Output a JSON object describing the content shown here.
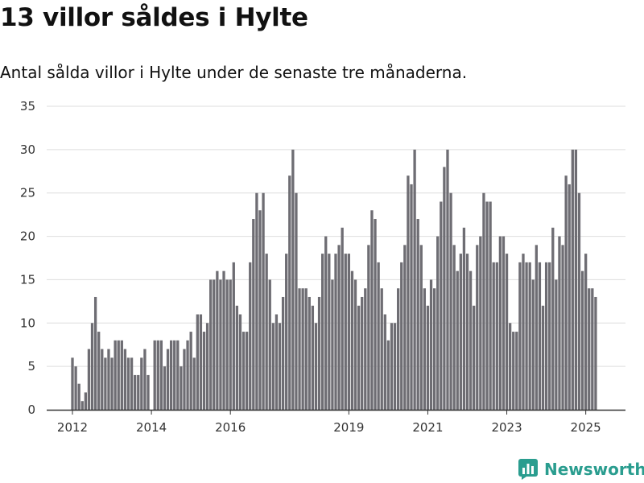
{
  "header": {
    "title": "13 villor såldes i Hylte",
    "subtitle": "Antal sålda villor i Hylte under de senaste tre månaderna."
  },
  "brand": {
    "name": "Newsworthy",
    "color": "#2a9d8f",
    "icon": "bar-chart-logo-icon"
  },
  "colors": {
    "bar": "#6e6d73",
    "highlight": "#2a9d8f",
    "grid": "#dddddd",
    "axis": "#333333"
  },
  "chart_data": {
    "type": "bar",
    "start": "2012-01",
    "frequency": "monthly",
    "values": [
      6,
      5,
      3,
      1,
      2,
      7,
      10,
      13,
      9,
      7,
      6,
      7,
      6,
      8,
      8,
      8,
      7,
      6,
      6,
      4,
      4,
      6,
      7,
      4,
      0,
      8,
      8,
      8,
      5,
      7,
      8,
      8,
      8,
      5,
      7,
      8,
      9,
      6,
      11,
      11,
      9,
      10,
      15,
      15,
      16,
      15,
      16,
      15,
      15,
      17,
      12,
      11,
      9,
      9,
      17,
      22,
      25,
      23,
      25,
      18,
      15,
      10,
      11,
      10,
      13,
      18,
      27,
      30,
      25,
      14,
      14,
      14,
      13,
      12,
      10,
      13,
      18,
      20,
      18,
      15,
      18,
      19,
      21,
      18,
      18,
      16,
      15,
      12,
      13,
      14,
      19,
      23,
      22,
      17,
      14,
      11,
      8,
      10,
      10,
      14,
      17,
      19,
      27,
      26,
      30,
      22,
      19,
      14,
      12,
      15,
      14,
      20,
      24,
      28,
      30,
      25,
      19,
      16,
      18,
      21,
      18,
      16,
      12,
      19,
      20,
      25,
      24,
      24,
      17,
      17,
      20,
      20,
      18,
      10,
      9,
      9,
      17,
      18,
      17,
      17,
      15,
      19,
      17,
      12,
      17,
      17,
      21,
      15,
      20,
      19,
      27,
      26,
      30,
      30,
      25,
      16,
      18,
      14,
      14,
      13
    ],
    "highlight_index": 160,
    "highlight_label": "13",
    "yticks": [
      0,
      5,
      10,
      15,
      20,
      25,
      30,
      35
    ],
    "ylim": [
      0,
      35
    ],
    "xticks": [
      "2012",
      "2014",
      "2016",
      "2019",
      "2021",
      "2023",
      "2025"
    ],
    "grid": true,
    "xlabel": "",
    "ylabel": ""
  }
}
